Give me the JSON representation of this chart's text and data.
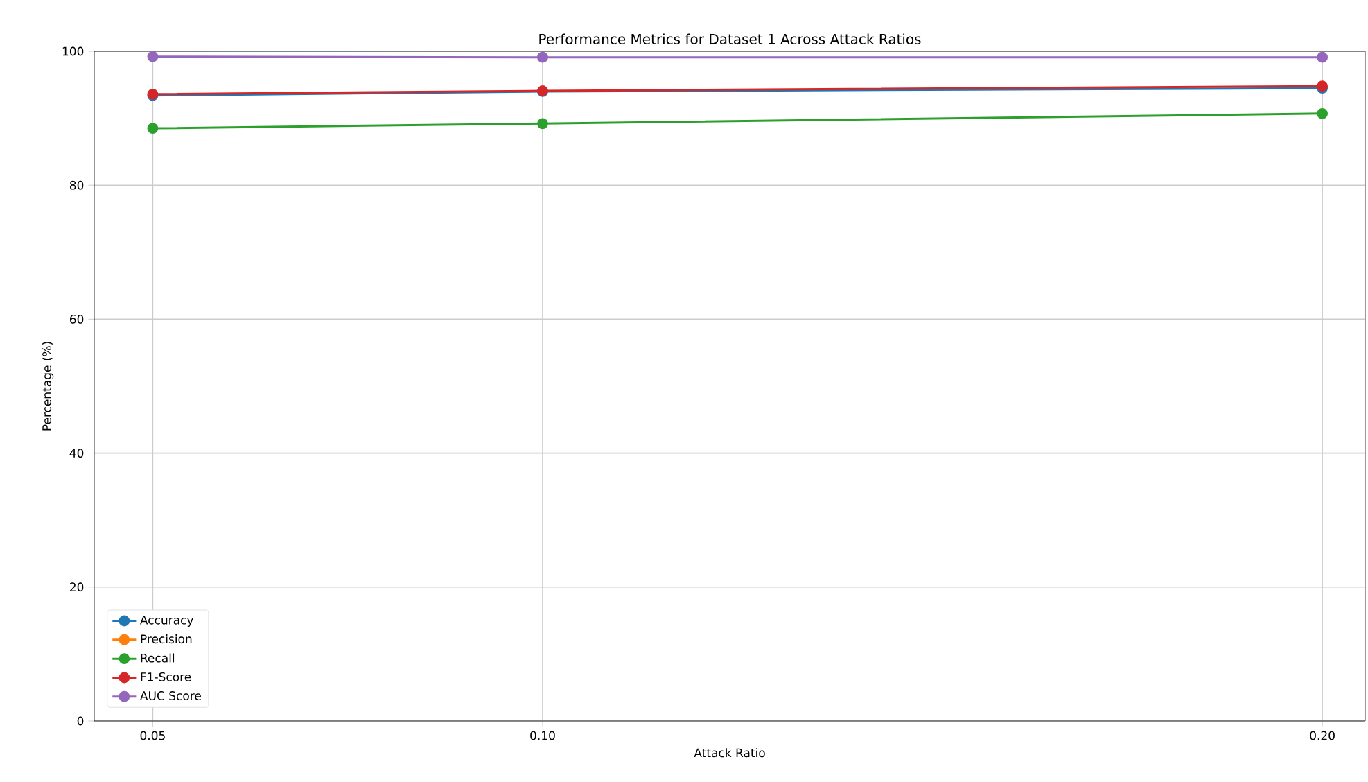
{
  "chart_data": {
    "type": "line",
    "title": "Performance Metrics for Dataset 1 Across Attack Ratios",
    "xlabel": "Attack Ratio",
    "ylabel": "Percentage (%)",
    "x": [
      0.05,
      0.1,
      0.2
    ],
    "series": [
      {
        "name": "Accuracy",
        "color": "#1f77b4",
        "values": [
          93.4,
          94.0,
          94.5
        ]
      },
      {
        "name": "Precision",
        "color": "#ff7f0e",
        "values": [
          null,
          null,
          null
        ]
      },
      {
        "name": "Recall",
        "color": "#2ca02c",
        "values": [
          88.5,
          89.2,
          90.7
        ]
      },
      {
        "name": "F1-Score",
        "color": "#d62728",
        "values": [
          93.6,
          94.1,
          94.8
        ]
      },
      {
        "name": "AUC Score",
        "color": "#9467bd",
        "values": [
          99.2,
          99.1,
          99.1
        ]
      }
    ],
    "xlim": [
      0.0425,
      0.2055
    ],
    "ylim": [
      0,
      100
    ],
    "xticks": [
      {
        "value": 0.05,
        "label": "0.05"
      },
      {
        "value": 0.1,
        "label": "0.10"
      },
      {
        "value": 0.2,
        "label": "0.20"
      }
    ],
    "yticks": [
      0,
      20,
      40,
      60,
      80,
      100
    ],
    "grid": true,
    "legend": "bottom left",
    "marker": "circle",
    "line_style": "solid"
  }
}
